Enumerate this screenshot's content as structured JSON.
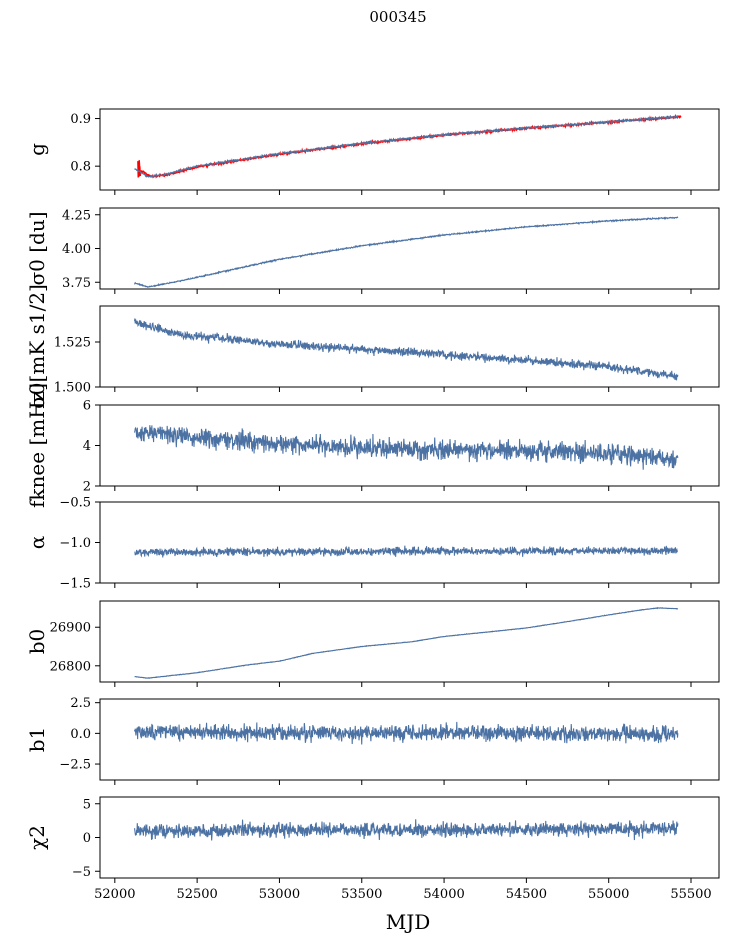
{
  "chart_data": {
    "type": "line",
    "title": "000345",
    "xlabel": "MJD",
    "x_range": [
      51910,
      55670
    ],
    "x_ticks": [
      "52000",
      "52500",
      "53000",
      "53500",
      "54000",
      "54500",
      "55000",
      "55500"
    ],
    "series_color": "#4c72a4",
    "overlay_color": "#ff0000",
    "x_start": 52120,
    "x_end": 55420,
    "panels": [
      {
        "id": "g",
        "ylabel": "g",
        "ylim": [
          0.75,
          0.92
        ],
        "yticks": [
          "0.9",
          "0.8"
        ],
        "yvals": [
          0.9,
          0.8
        ],
        "trend": [
          [
            52120,
            0.795
          ],
          [
            52200,
            0.778
          ],
          [
            52300,
            0.782
          ],
          [
            52500,
            0.8
          ],
          [
            53000,
            0.826
          ],
          [
            53500,
            0.848
          ],
          [
            54000,
            0.866
          ],
          [
            54500,
            0.88
          ],
          [
            55000,
            0.893
          ],
          [
            55420,
            0.904
          ]
        ],
        "noise": 0.0015,
        "overlay": true
      },
      {
        "id": "sigma0",
        "ylabel": "σ0 [du]",
        "ylim": [
          3.7,
          4.3
        ],
        "yticks": [
          "4.25",
          "4.00",
          "3.75"
        ],
        "yvals": [
          4.25,
          4.0,
          3.75
        ],
        "trend": [
          [
            52120,
            3.745
          ],
          [
            52200,
            3.715
          ],
          [
            52400,
            3.76
          ],
          [
            52700,
            3.84
          ],
          [
            53000,
            3.92
          ],
          [
            53500,
            4.02
          ],
          [
            54000,
            4.1
          ],
          [
            54500,
            4.16
          ],
          [
            55000,
            4.205
          ],
          [
            55420,
            4.23
          ]
        ],
        "noise": 0.004
      },
      {
        "id": "sigma0_mk",
        "ylabel": "σ0[mK s1/2]",
        "ylim": [
          1.5,
          1.545
        ],
        "yticks": [
          "1.525",
          "1.500"
        ],
        "yvals": [
          1.525,
          1.5
        ],
        "trend": [
          [
            52120,
            1.536
          ],
          [
            52400,
            1.529
          ],
          [
            53000,
            1.524
          ],
          [
            53500,
            1.521
          ],
          [
            54000,
            1.518
          ],
          [
            54500,
            1.515
          ],
          [
            55000,
            1.511
          ],
          [
            55420,
            1.506
          ]
        ],
        "noise": 0.0022
      },
      {
        "id": "fknee",
        "ylabel": "fknee [mHz]",
        "ylim": [
          2,
          6
        ],
        "yticks": [
          "6",
          "4",
          "2"
        ],
        "yvals": [
          6,
          4,
          2
        ],
        "trend": [
          [
            52120,
            4.7
          ],
          [
            52500,
            4.4
          ],
          [
            53000,
            4.1
          ],
          [
            53500,
            3.9
          ],
          [
            54000,
            3.8
          ],
          [
            54500,
            3.75
          ],
          [
            55000,
            3.6
          ],
          [
            55420,
            3.3
          ]
        ],
        "noise": 0.45
      },
      {
        "id": "alpha",
        "ylabel": "α",
        "ylim": [
          -1.5,
          -0.5
        ],
        "yticks": [
          "−0.5",
          "−1.0",
          "−1.5"
        ],
        "yvals": [
          -0.5,
          -1.0,
          -1.5
        ],
        "trend": [
          [
            52120,
            -1.12
          ],
          [
            55420,
            -1.1
          ]
        ],
        "noise": 0.045
      },
      {
        "id": "b0",
        "ylabel": "b0",
        "ylim": [
          26758,
          26968
        ],
        "yticks": [
          "26900",
          "26800"
        ],
        "yvals": [
          26900,
          26800
        ],
        "trend": [
          [
            52120,
            26772
          ],
          [
            52200,
            26768
          ],
          [
            52500,
            26782
          ],
          [
            52800,
            26802
          ],
          [
            53000,
            26812
          ],
          [
            53200,
            26832
          ],
          [
            53500,
            26850
          ],
          [
            53800,
            26862
          ],
          [
            54000,
            26876
          ],
          [
            54500,
            26898
          ],
          [
            54800,
            26918
          ],
          [
            55000,
            26932
          ],
          [
            55200,
            26945
          ],
          [
            55300,
            26950
          ],
          [
            55420,
            26948
          ]
        ],
        "noise": 0.6
      },
      {
        "id": "b1",
        "ylabel": "b1",
        "ylim": [
          -3.8,
          2.8
        ],
        "yticks": [
          "2.5",
          "0.0",
          "−2.5"
        ],
        "yvals": [
          2.5,
          0.0,
          -2.5
        ],
        "trend": [
          [
            52120,
            0.1
          ],
          [
            55420,
            -0.05
          ]
        ],
        "noise": 0.6
      },
      {
        "id": "chi2",
        "ylabel": "χ2",
        "ylim": [
          -6,
          6
        ],
        "yticks": [
          "5",
          "0",
          "−5"
        ],
        "yvals": [
          5,
          0,
          -5
        ],
        "trend": [
          [
            52120,
            1.0
          ],
          [
            55420,
            1.3
          ]
        ],
        "noise": 1.0
      }
    ]
  }
}
